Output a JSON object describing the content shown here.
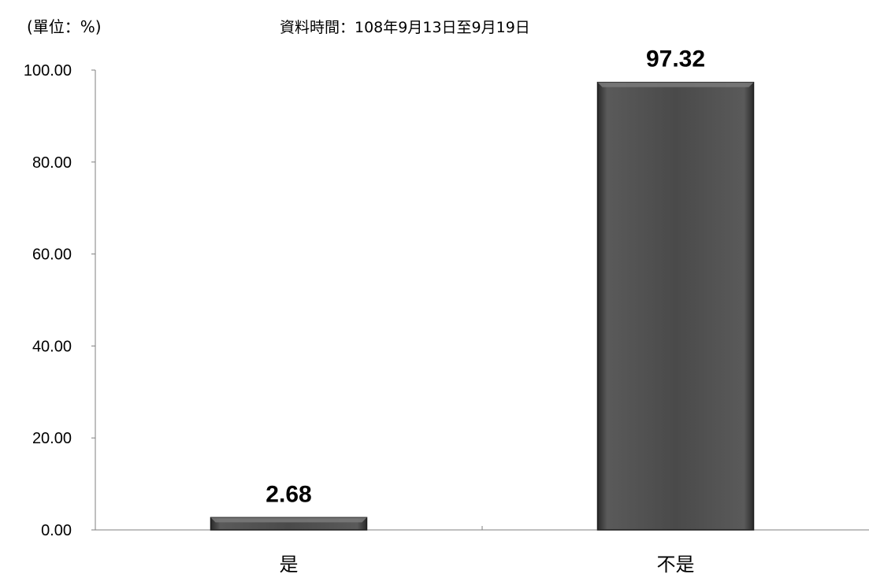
{
  "unit_label": "(單位：%)",
  "date_range_label": "資料時間：108年9月13日至9月19日",
  "colors": {
    "bar_fill": "#4a4a4a",
    "bar_edge": "#1e1e1e",
    "bar_highlight": "#7a7a7a",
    "axis": "#7f7f7f",
    "text": "#000000"
  },
  "chart_data": {
    "type": "bar",
    "title": "",
    "xlabel": "",
    "ylabel": "",
    "categories": [
      "是",
      "不是"
    ],
    "values": [
      2.68,
      97.32
    ],
    "value_labels": [
      "2.68",
      "97.32"
    ],
    "ylim": [
      0,
      100
    ],
    "yticks": [
      0,
      20,
      40,
      60,
      80,
      100
    ],
    "ytick_labels": [
      "0.00",
      "20.00",
      "40.00",
      "60.00",
      "80.00",
      "100.00"
    ],
    "grid": false,
    "legend": "none"
  }
}
